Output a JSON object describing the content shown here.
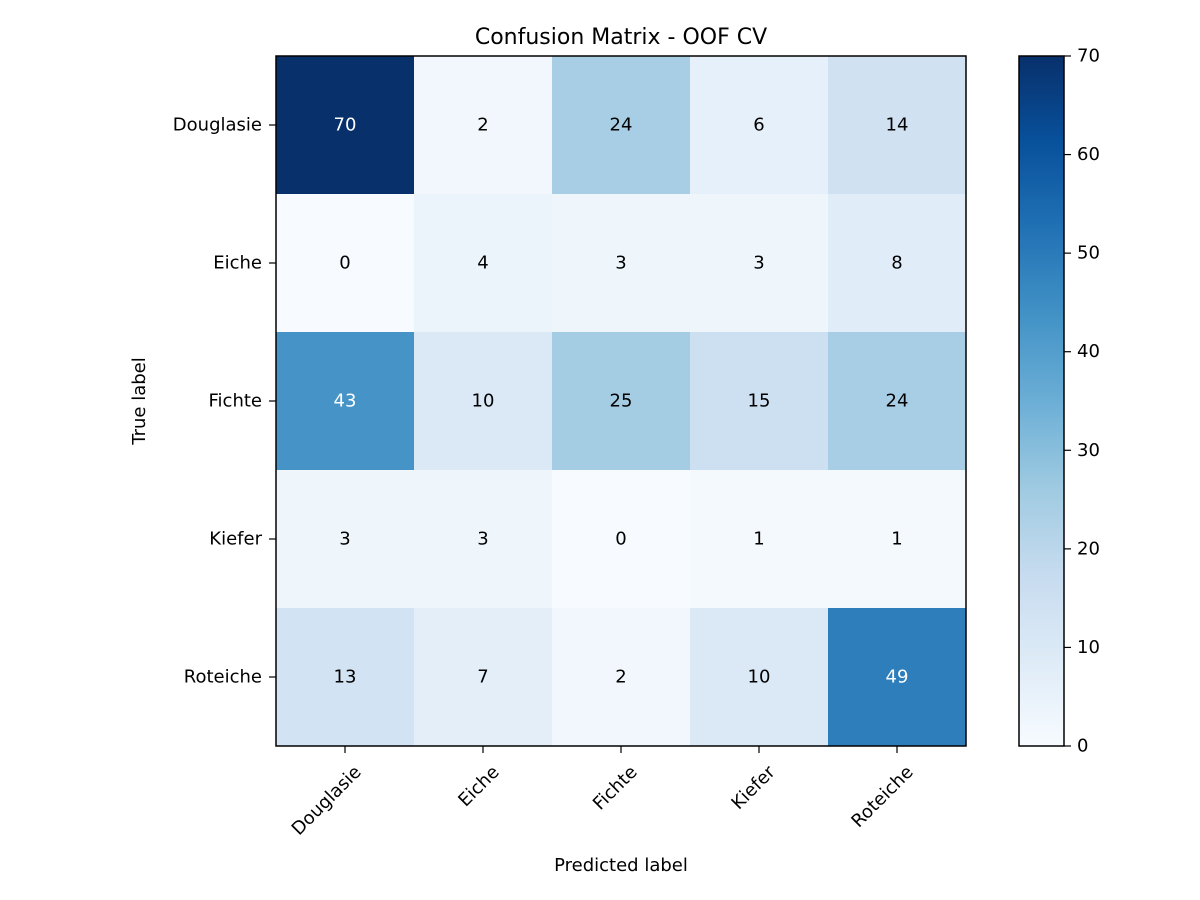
{
  "chart_data": {
    "type": "heatmap",
    "title": "Confusion Matrix - OOF CV",
    "xlabel": "Predicted label",
    "ylabel": "True label",
    "x_categories": [
      "Douglasie",
      "Eiche",
      "Fichte",
      "Kiefer",
      "Roteiche"
    ],
    "y_categories": [
      "Douglasie",
      "Eiche",
      "Fichte",
      "Kiefer",
      "Roteiche"
    ],
    "values": [
      [
        70,
        2,
        24,
        6,
        14
      ],
      [
        0,
        4,
        3,
        3,
        8
      ],
      [
        43,
        10,
        25,
        15,
        24
      ],
      [
        3,
        3,
        0,
        1,
        1
      ],
      [
        13,
        7,
        2,
        10,
        49
      ]
    ],
    "colormap": "Blues",
    "colorbar": {
      "range": [
        0,
        70
      ],
      "ticks": [
        0,
        10,
        20,
        30,
        40,
        50,
        60,
        70
      ]
    },
    "text_colors": {
      "dark_cell": "#ffffff",
      "light_cell": "#000000"
    }
  }
}
